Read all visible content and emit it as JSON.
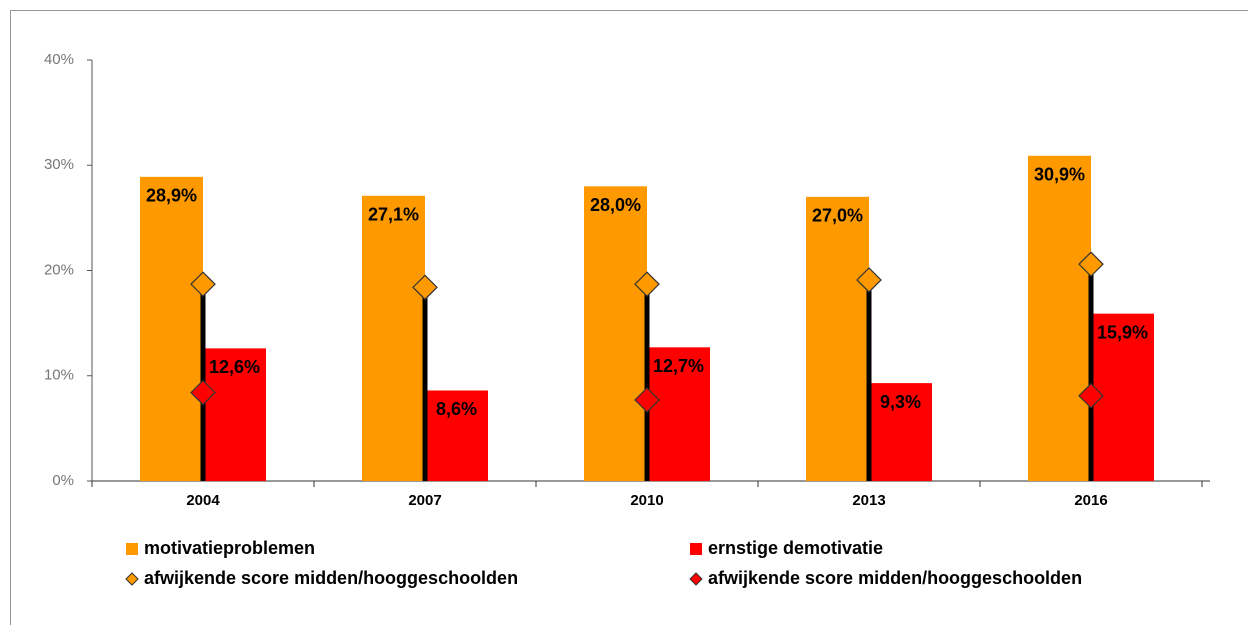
{
  "chart_data": {
    "type": "bar",
    "categories": [
      "2004",
      "2007",
      "2010",
      "2013",
      "2016"
    ],
    "series": [
      {
        "name": "motivatieproblemen",
        "color": "#ff9900",
        "kind": "bar",
        "values": [
          28.9,
          27.1,
          28.0,
          27.0,
          30.9
        ],
        "value_labels": [
          "28,9%",
          "27,1%",
          "28,0%",
          "27,0%",
          "30,9%"
        ]
      },
      {
        "name": "ernstige demotivatie",
        "color": "#ff0000",
        "kind": "bar",
        "values": [
          12.6,
          8.6,
          12.7,
          9.3,
          15.9
        ],
        "value_labels": [
          "12,6%",
          "8,6%",
          "12,7%",
          "9,3%",
          "15,9%"
        ]
      },
      {
        "name": "afwijkende score midden/hooggeschoolden",
        "color": "#ff9900",
        "kind": "diamond",
        "values": [
          18.7,
          18.4,
          18.7,
          19.1,
          20.6
        ]
      },
      {
        "name": "afwijkende score midden/hooggeschoolden",
        "color": "#ff0000",
        "kind": "diamond",
        "values": [
          8.4,
          null,
          7.7,
          null,
          8.1
        ]
      }
    ],
    "ylim": [
      0,
      40
    ],
    "yticks": [
      {
        "value": 0,
        "label": "0%"
      },
      {
        "value": 10,
        "label": "10%"
      },
      {
        "value": 20,
        "label": "20%"
      },
      {
        "value": 30,
        "label": "30%"
      },
      {
        "value": 40,
        "label": "40%"
      }
    ],
    "grid": false
  }
}
